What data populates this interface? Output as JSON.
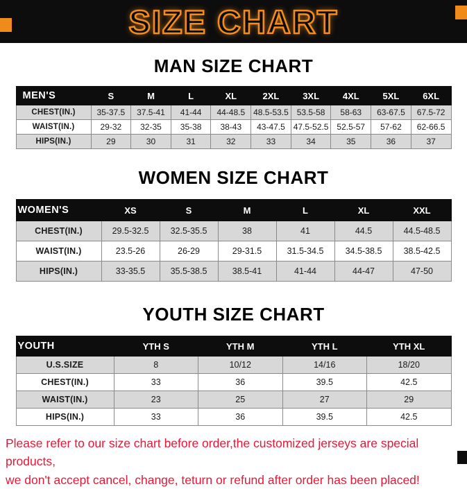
{
  "title": "SIZE CHART",
  "sections": [
    {
      "heading": "MAN SIZE CHART",
      "table": {
        "header": [
          "MEN'S",
          "S",
          "M",
          "L",
          "XL",
          "2XL",
          "3XL",
          "4XL",
          "5XL",
          "6XL"
        ],
        "rows": [
          {
            "label": "CHEST(IN.)",
            "values": [
              "35-37.5",
              "37.5-41",
              "41-44",
              "44-48.5",
              "48.5-53.5",
              "53.5-58",
              "58-63",
              "63-67.5",
              "67.5-72"
            ]
          },
          {
            "label": "WAIST(IN.)",
            "values": [
              "29-32",
              "32-35",
              "35-38",
              "38-43",
              "43-47.5",
              "47.5-52.5",
              "52.5-57",
              "57-62",
              "62-66.5"
            ]
          },
          {
            "label": "HIPS(IN.)",
            "values": [
              "29",
              "30",
              "31",
              "32",
              "33",
              "34",
              "35",
              "36",
              "37"
            ]
          }
        ]
      }
    },
    {
      "heading": "WOMEN SIZE CHART",
      "table": {
        "header": [
          "WOMEN'S",
          "XS",
          "S",
          "M",
          "L",
          "XL",
          "XXL"
        ],
        "rows": [
          {
            "label": "CHEST(IN.)",
            "values": [
              "29.5-32.5",
              "32.5-35.5",
              "38",
              "41",
              "44.5",
              "44.5-48.5"
            ]
          },
          {
            "label": "WAIST(IN.)",
            "values": [
              "23.5-26",
              "26-29",
              "29-31.5",
              "31.5-34.5",
              "34.5-38.5",
              "38.5-42.5"
            ]
          },
          {
            "label": "HIPS(IN.)",
            "values": [
              "33-35.5",
              "35.5-38.5",
              "38.5-41",
              "41-44",
              "44-47",
              "47-50"
            ]
          }
        ]
      }
    },
    {
      "heading": "YOUTH SIZE CHART",
      "table": {
        "header": [
          "YOUTH",
          "YTH S",
          "YTH M",
          "YTH L",
          "YTH XL"
        ],
        "rows": [
          {
            "label": "U.S.SIZE",
            "values": [
              "8",
              "10/12",
              "14/16",
              "18/20"
            ]
          },
          {
            "label": "CHEST(IN.)",
            "values": [
              "33",
              "36",
              "39.5",
              "42.5"
            ]
          },
          {
            "label": "WAIST(IN.)",
            "values": [
              "23",
              "25",
              "27",
              "29"
            ]
          },
          {
            "label": "HIPS(IN.)",
            "values": [
              "33",
              "36",
              "39.5",
              "42.5"
            ]
          }
        ]
      }
    }
  ],
  "footer": {
    "line1": "Please refer to our size chart before order,the customized jerseys are special products,",
    "line2": "we don't accept cancel, change, teturn or refund after order has been placed!"
  },
  "colors": {
    "accent_orange": "#ef8b1a",
    "header_black": "#0d0d0d",
    "row_gray": "#d8d8d8",
    "warning_red": "#e51937"
  }
}
